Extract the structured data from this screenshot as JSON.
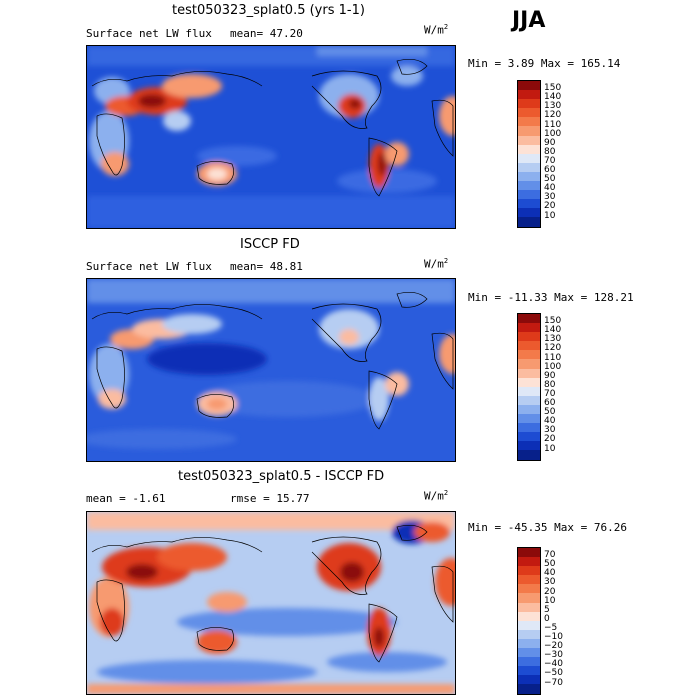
{
  "season": "JJA",
  "panels": [
    {
      "title": "test050323_splat0.5 (yrs 1-1)",
      "left_text": "Surface net LW flux",
      "mid_text": "mean=  47.20",
      "units": "W/m",
      "units_sup": "2",
      "minmax": "Min =    3.89 Max = 165.14",
      "colorbar": {
        "labels": [
          "150",
          "140",
          "130",
          "120",
          "110",
          "100",
          "90",
          "80",
          "70",
          "60",
          "50",
          "40",
          "30",
          "20",
          "10"
        ],
        "colors": [
          "#8b0a0a",
          "#c21a10",
          "#de3a1a",
          "#ec5a2e",
          "#f37a4a",
          "#f79a70",
          "#fbbca0",
          "#fde2d6",
          "#dfe8f7",
          "#b6cdf2",
          "#8cb0ee",
          "#628fe8",
          "#3c6de0",
          "#1d4cd2",
          "#0c2fb6",
          "#07208a"
        ]
      }
    },
    {
      "title": "ISCCP FD",
      "left_text": "Surface net LW flux",
      "mid_text": "mean=  48.81",
      "units": "W/m",
      "units_sup": "2",
      "minmax": "Min = -11.33 Max = 128.21",
      "colorbar": {
        "labels": [
          "150",
          "140",
          "130",
          "120",
          "110",
          "100",
          "90",
          "80",
          "70",
          "60",
          "50",
          "40",
          "30",
          "20",
          "10"
        ],
        "colors": [
          "#8b0a0a",
          "#c21a10",
          "#de3a1a",
          "#ec5a2e",
          "#f37a4a",
          "#f79a70",
          "#fbbca0",
          "#fde2d6",
          "#dfe8f7",
          "#b6cdf2",
          "#8cb0ee",
          "#628fe8",
          "#3c6de0",
          "#1d4cd2",
          "#0c2fb6",
          "#07208a"
        ]
      }
    },
    {
      "title": "test050323_splat0.5 - ISCCP FD",
      "left_text": "mean =   -1.61",
      "mid_text": "rmse =  15.77",
      "units": "W/m",
      "units_sup": "2",
      "minmax": "Min = -45.35 Max =  76.26",
      "colorbar": {
        "labels": [
          "70",
          "50",
          "40",
          "30",
          "20",
          "10",
          "5",
          "0",
          "−5",
          "−10",
          "−20",
          "−30",
          "−40",
          "−50",
          "−70"
        ],
        "colors": [
          "#8b0a0a",
          "#c21a10",
          "#de3a1a",
          "#ec5a2e",
          "#f37a4a",
          "#f79a70",
          "#fbbca0",
          "#fde2d6",
          "#dfe8f7",
          "#b6cdf2",
          "#8cb0ee",
          "#628fe8",
          "#3c6de0",
          "#1d4cd2",
          "#0c2fb6",
          "#07208a"
        ]
      }
    }
  ]
}
